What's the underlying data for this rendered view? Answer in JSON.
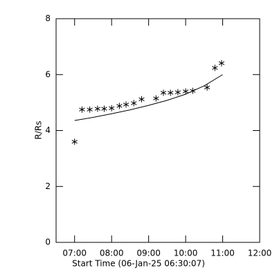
{
  "chart_data": {
    "type": "scatter",
    "x_label": "Start Time (06-Jan-25 06:30:07)",
    "y_label": "R/Rs",
    "x": [
      7.0,
      7.2,
      7.41,
      7.62,
      7.8,
      8.0,
      8.21,
      8.39,
      8.6,
      8.81,
      9.2,
      9.4,
      9.59,
      9.79,
      10.0,
      10.19,
      10.58,
      10.79,
      10.97
    ],
    "values": [
      3.6,
      4.75,
      4.75,
      4.78,
      4.78,
      4.8,
      4.88,
      4.93,
      4.98,
      5.12,
      5.15,
      5.35,
      5.35,
      5.37,
      5.4,
      5.42,
      5.54,
      6.24,
      6.41
    ],
    "color": "#000000",
    "fit": {
      "x": [
        7.0,
        7.5,
        8.0,
        8.5,
        9.0,
        9.5,
        10.0,
        10.5,
        11.0
      ],
      "values": [
        4.36,
        4.47,
        4.6,
        4.74,
        4.9,
        5.08,
        5.3,
        5.6,
        6.0
      ]
    },
    "xlim": [
      6.5,
      12.0
    ],
    "xticks": [
      {
        "value": 7,
        "label": "07:00"
      },
      {
        "value": 8,
        "label": "08:00"
      },
      {
        "value": 9,
        "label": "09:00"
      },
      {
        "value": 10,
        "label": "10:00"
      },
      {
        "value": 11,
        "label": "11:00"
      },
      {
        "value": 12,
        "label": "12:00"
      }
    ],
    "ylim": [
      0,
      8
    ],
    "yticks": [
      0,
      2,
      4,
      6,
      8
    ],
    "grid": false
  }
}
